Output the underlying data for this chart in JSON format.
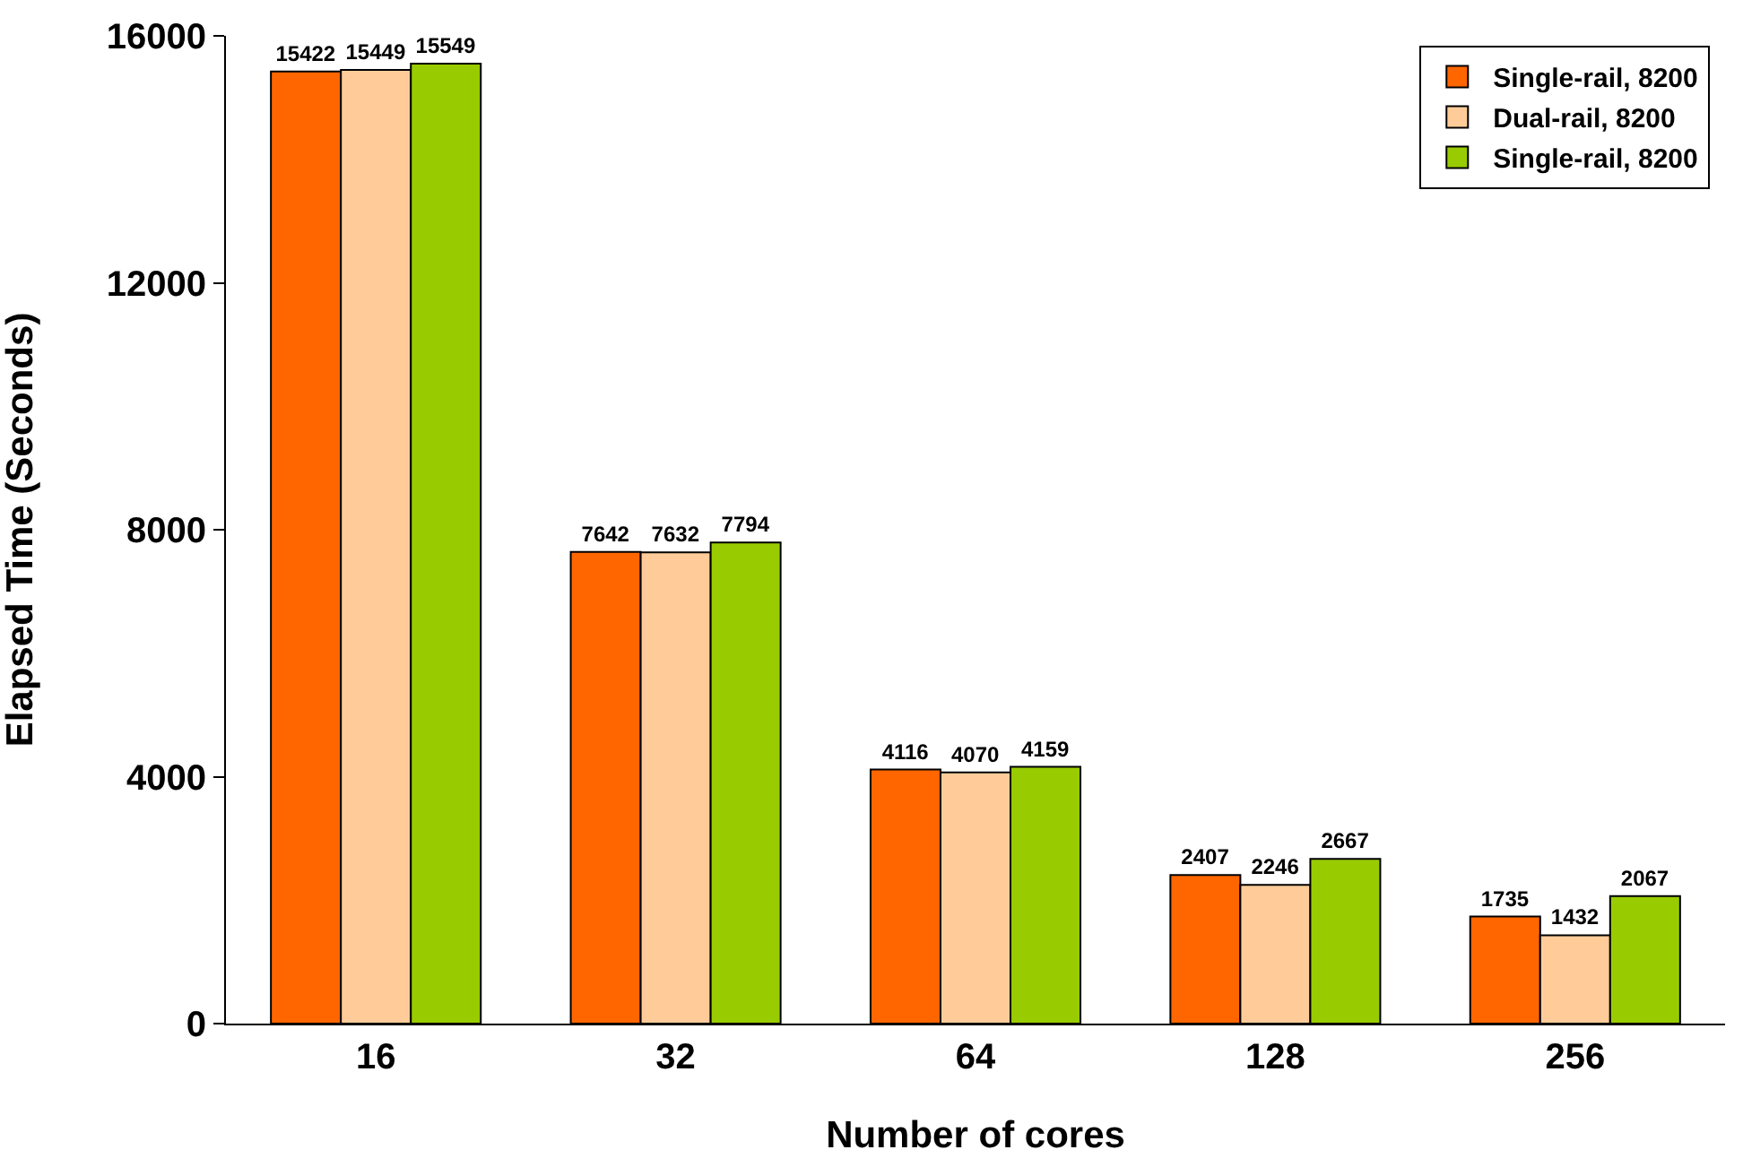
{
  "chart_data": {
    "type": "bar",
    "xlabel": "Number of cores",
    "ylabel": "Elapsed Time (Seconds)",
    "categories": [
      "16",
      "32",
      "64",
      "128",
      "256"
    ],
    "series": [
      {
        "name": "Single-rail, 8200",
        "color": "#ff6600",
        "values": [
          15422,
          7642,
          4116,
          2407,
          1735
        ]
      },
      {
        "name": "Dual-rail, 8200",
        "color": "#ffcc99",
        "values": [
          15449,
          7632,
          4070,
          2246,
          1432
        ]
      },
      {
        "name": "Single-rail, 8200",
        "color": "#99cc00",
        "values": [
          15549,
          7794,
          4159,
          2667,
          2067
        ]
      }
    ],
    "ylim": [
      0,
      16000
    ],
    "yticks": [
      0,
      4000,
      8000,
      12000,
      16000
    ],
    "grid": false,
    "legend": "top right",
    "data_labels": true
  }
}
